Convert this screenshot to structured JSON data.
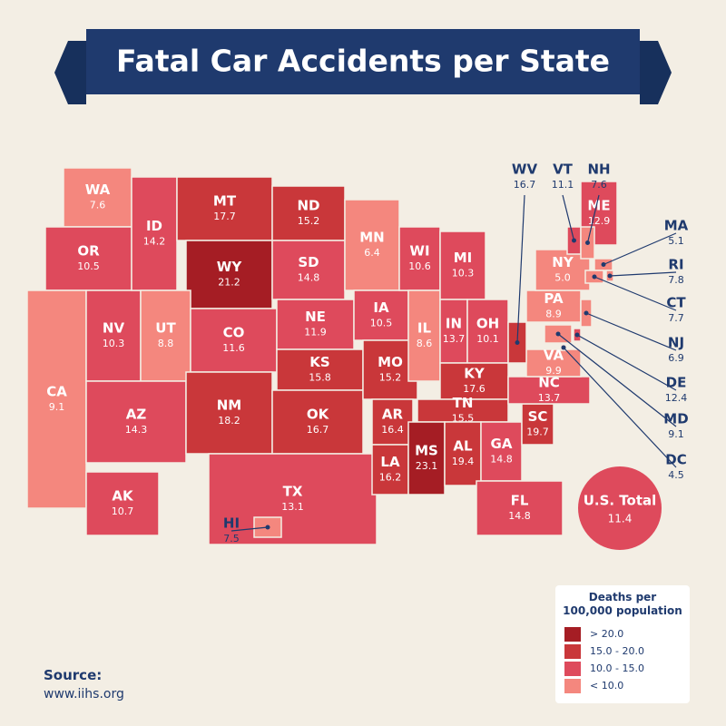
{
  "title": "Fatal Car Accidents per State",
  "states": [
    {
      "abbr": "WA",
      "value": "7.6",
      "color": "#f4877e"
    },
    {
      "abbr": "OR",
      "value": "10.5",
      "color": "#de4a5c"
    },
    {
      "abbr": "CA",
      "value": "9.1",
      "color": "#f4877e"
    },
    {
      "abbr": "NV",
      "value": "10.3",
      "color": "#de4a5c"
    },
    {
      "abbr": "ID",
      "value": "14.2",
      "color": "#de4a5c"
    },
    {
      "abbr": "MT",
      "value": "17.7",
      "color": "#c9373a"
    },
    {
      "abbr": "WY",
      "value": "21.2",
      "color": "#a51d24"
    },
    {
      "abbr": "UT",
      "value": "8.8",
      "color": "#f4877e"
    },
    {
      "abbr": "AZ",
      "value": "14.3",
      "color": "#de4a5c"
    },
    {
      "abbr": "CO",
      "value": "11.6",
      "color": "#de4a5c"
    },
    {
      "abbr": "NM",
      "value": "18.2",
      "color": "#c9373a"
    },
    {
      "abbr": "ND",
      "value": "15.2",
      "color": "#c9373a"
    },
    {
      "abbr": "SD",
      "value": "14.8",
      "color": "#de4a5c"
    },
    {
      "abbr": "NE",
      "value": "11.9",
      "color": "#de4a5c"
    },
    {
      "abbr": "KS",
      "value": "15.8",
      "color": "#c9373a"
    },
    {
      "abbr": "OK",
      "value": "16.7",
      "color": "#c9373a"
    },
    {
      "abbr": "TX",
      "value": "13.1",
      "color": "#de4a5c"
    },
    {
      "abbr": "MN",
      "value": "6.4",
      "color": "#f4877e"
    },
    {
      "abbr": "IA",
      "value": "10.5",
      "color": "#de4a5c"
    },
    {
      "abbr": "MO",
      "value": "15.2",
      "color": "#c9373a"
    },
    {
      "abbr": "AR",
      "value": "16.4",
      "color": "#c9373a"
    },
    {
      "abbr": "LA",
      "value": "16.2",
      "color": "#c9373a"
    },
    {
      "abbr": "WI",
      "value": "10.6",
      "color": "#de4a5c"
    },
    {
      "abbr": "IL",
      "value": "8.6",
      "color": "#f4877e"
    },
    {
      "abbr": "MI",
      "value": "10.3",
      "color": "#de4a5c"
    },
    {
      "abbr": "IN",
      "value": "13.7",
      "color": "#de4a5c"
    },
    {
      "abbr": "OH",
      "value": "10.1",
      "color": "#de4a5c"
    },
    {
      "abbr": "KY",
      "value": "17.6",
      "color": "#c9373a"
    },
    {
      "abbr": "TN",
      "value": "15.5",
      "color": "#c9373a"
    },
    {
      "abbr": "MS",
      "value": "23.1",
      "color": "#a51d24"
    },
    {
      "abbr": "AL",
      "value": "19.4",
      "color": "#c9373a"
    },
    {
      "abbr": "GA",
      "value": "14.8",
      "color": "#de4a5c"
    },
    {
      "abbr": "FL",
      "value": "14.8",
      "color": "#de4a5c"
    },
    {
      "abbr": "SC",
      "value": "19.7",
      "color": "#c9373a"
    },
    {
      "abbr": "NC",
      "value": "13.7",
      "color": "#de4a5c"
    },
    {
      "abbr": "VA",
      "value": "9.9",
      "color": "#f4877e"
    },
    {
      "abbr": "WV",
      "value": "16.7",
      "color": "#c9373a"
    },
    {
      "abbr": "PA",
      "value": "8.9",
      "color": "#f4877e"
    },
    {
      "abbr": "NY",
      "value": "5.0",
      "color": "#f4877e"
    },
    {
      "abbr": "ME",
      "value": "12.9",
      "color": "#de4a5c"
    },
    {
      "abbr": "VT",
      "value": "11.1",
      "color": "#de4a5c"
    },
    {
      "abbr": "NH",
      "value": "7.6",
      "color": "#f4877e"
    },
    {
      "abbr": "MA",
      "value": "5.1",
      "color": "#f4877e"
    },
    {
      "abbr": "RI",
      "value": "7.8",
      "color": "#f4877e"
    },
    {
      "abbr": "CT",
      "value": "7.7",
      "color": "#f4877e"
    },
    {
      "abbr": "NJ",
      "value": "6.9",
      "color": "#f4877e"
    },
    {
      "abbr": "DE",
      "value": "12.4",
      "color": "#de4a5c"
    },
    {
      "abbr": "MD",
      "value": "9.1",
      "color": "#f4877e"
    },
    {
      "abbr": "DC",
      "value": "4.5",
      "color": "#f4877e"
    },
    {
      "abbr": "AK",
      "value": "10.7",
      "color": "#de4a5c"
    },
    {
      "abbr": "HI",
      "value": "7.5",
      "color": "#f4877e"
    }
  ],
  "us_total": {
    "label": "U.S. Total",
    "value": "11.4",
    "color": "#de4a5c"
  },
  "legend": {
    "title": "Deaths per 100,000 population",
    "items": [
      {
        "label": "> 20.0",
        "color": "#a51d24"
      },
      {
        "label": "15.0 - 20.0",
        "color": "#c9373a"
      },
      {
        "label": "10.0 - 15.0",
        "color": "#de4a5c"
      },
      {
        "label": "< 10.0",
        "color": "#f4877e"
      }
    ]
  },
  "source": {
    "label": "Source:",
    "url": "www.iihs.org"
  }
}
